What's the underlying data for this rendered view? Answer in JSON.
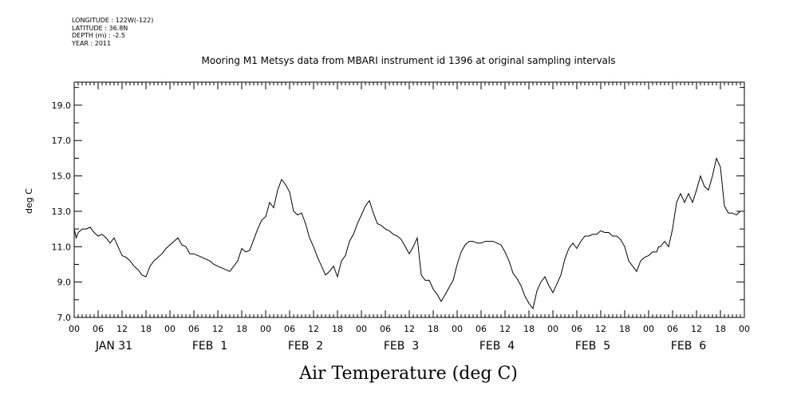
{
  "meta": {
    "longitude": "LONGITUDE : 122W(-122)",
    "latitude": "LATITUDE : 36.8N",
    "depth": "DEPTH (m) : -2.5",
    "year": "YEAR : 2011"
  },
  "chart_data": {
    "type": "line",
    "title": "Mooring M1 Metsys data from MBARI instrument id 1396 at original sampling intervals",
    "ylabel": "deg C",
    "caption": "Air Temperature (deg C)",
    "xlim": [
      0,
      168
    ],
    "ylim": [
      7.0,
      20.3
    ],
    "y_ticks": [
      "7.0",
      "9.0",
      "11.0",
      "13.0",
      "15.0",
      "17.0",
      "19.0"
    ],
    "x_hour_ticks": [
      "00",
      "06",
      "12",
      "18",
      "00",
      "06",
      "12",
      "18",
      "00",
      "06",
      "12",
      "18",
      "00",
      "06",
      "12",
      "18",
      "00",
      "06",
      "12",
      "18",
      "00",
      "06",
      "12",
      "18",
      "00",
      "06",
      "12",
      "18",
      "00"
    ],
    "day_labels": [
      "JAN 31",
      "FEB  1",
      "FEB  2",
      "FEB  3",
      "FEB  4",
      "FEB  5",
      "FEB  6"
    ],
    "grid": false,
    "legend": "none",
    "line_color": "#000000",
    "x_unit": "hours since 2011-01-31 00:00",
    "series": [
      {
        "x": [
          0,
          0.5,
          1,
          2,
          3,
          4,
          5,
          6,
          7,
          8,
          9,
          10,
          11,
          12,
          13,
          14,
          15,
          16,
          17,
          18,
          19,
          20,
          21,
          22,
          23,
          24,
          25,
          26,
          27,
          28,
          29,
          30,
          31,
          32,
          33,
          34,
          35,
          36,
          37,
          38,
          39,
          40,
          41,
          42,
          43,
          44,
          45,
          46,
          47,
          48,
          49,
          50,
          51,
          52,
          53,
          54,
          55,
          56,
          57,
          58,
          59,
          60,
          61,
          62,
          63,
          64,
          65,
          66,
          67,
          68,
          69,
          70,
          71,
          72,
          73,
          74,
          75,
          76,
          77,
          78,
          79,
          80,
          81,
          82,
          83,
          84,
          85,
          86,
          87,
          88,
          89,
          90,
          91,
          92,
          93,
          94,
          95,
          96,
          97,
          98,
          99,
          100,
          101,
          102,
          103,
          104,
          105,
          106,
          107,
          108,
          109,
          110,
          111,
          112,
          113,
          114,
          115,
          116,
          117,
          118,
          119,
          120,
          121,
          122,
          123,
          124,
          125,
          126,
          127,
          128,
          129,
          130,
          131,
          132,
          133,
          134,
          135,
          136,
          137,
          138,
          139,
          140,
          141,
          142,
          143,
          144,
          145,
          146,
          146.5,
          147,
          148,
          149,
          150,
          151,
          152,
          153,
          154,
          155,
          156,
          157,
          158,
          159,
          160,
          161,
          162,
          163,
          164,
          165,
          166,
          167
        ],
        "y": [
          12.0,
          11.5,
          11.8,
          12.0,
          12.0,
          12.1,
          11.8,
          11.6,
          11.7,
          11.5,
          11.2,
          11.5,
          11.0,
          10.5,
          10.4,
          10.2,
          9.9,
          9.7,
          9.4,
          9.3,
          9.9,
          10.2,
          10.4,
          10.6,
          10.9,
          11.1,
          11.3,
          11.5,
          11.1,
          11.0,
          10.6,
          10.6,
          10.5,
          10.4,
          10.3,
          10.2,
          10.0,
          9.9,
          9.8,
          9.7,
          9.6,
          9.9,
          10.2,
          10.9,
          10.7,
          10.8,
          11.4,
          12.0,
          12.5,
          12.7,
          13.5,
          13.2,
          14.2,
          14.8,
          14.5,
          14.1,
          13.0,
          12.8,
          12.9,
          12.3,
          11.5,
          11.0,
          10.4,
          9.9,
          9.4,
          9.6,
          9.9,
          9.3,
          10.2,
          10.5,
          11.3,
          11.7,
          12.3,
          12.8,
          13.3,
          13.6,
          12.9,
          12.3,
          12.2,
          12.0,
          11.9,
          11.7,
          11.6,
          11.4,
          11.0,
          10.6,
          11.0,
          11.5,
          9.4,
          9.1,
          9.1,
          8.6,
          8.3,
          7.9,
          8.3,
          8.7,
          9.1,
          10.0,
          10.7,
          11.1,
          11.3,
          11.3,
          11.2,
          11.2,
          11.3,
          11.3,
          11.3,
          11.2,
          11.1,
          10.7,
          10.2,
          9.5,
          9.2,
          8.8,
          8.2,
          7.8,
          7.5,
          8.5,
          9.0,
          9.3,
          8.8,
          8.4,
          8.9,
          9.4,
          10.3,
          10.9,
          11.2,
          10.9,
          11.3,
          11.6,
          11.6,
          11.7,
          11.7,
          11.9,
          11.8,
          11.8,
          11.6,
          11.6,
          11.4,
          11.0,
          10.2,
          9.9,
          9.6,
          10.2,
          10.4,
          10.5,
          10.7,
          10.7,
          11.0,
          11.0,
          11.3,
          11.0,
          12.0,
          13.5,
          14.0,
          13.5,
          14.0,
          13.5,
          14.2,
          15.0,
          14.4,
          14.2,
          15.0,
          16.0,
          15.5,
          13.3,
          12.9,
          12.9,
          12.8,
          13.0
        ]
      }
    ]
  }
}
